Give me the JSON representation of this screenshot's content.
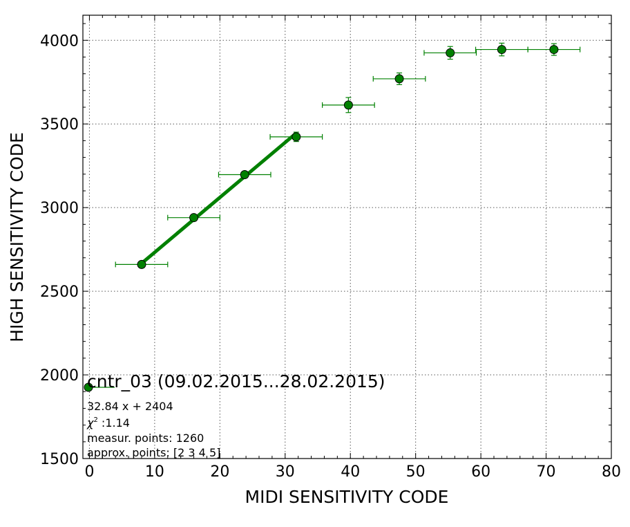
{
  "chart_data": {
    "type": "scatter",
    "xlabel": "MIDI SENSITIVITY CODE",
    "ylabel": "HIGH SENSITIVITY CODE",
    "xlim": [
      -1,
      80
    ],
    "ylim": [
      1500,
      4150
    ],
    "xticks": [
      0,
      10,
      20,
      30,
      40,
      50,
      60,
      70,
      80
    ],
    "yticks": [
      1500,
      2000,
      2500,
      3000,
      3500,
      4000
    ],
    "xtick_labels": [
      "0",
      "10",
      "20",
      "30",
      "40",
      "50",
      "60",
      "70",
      "80"
    ],
    "ytick_labels": [
      "1500",
      "2000",
      "2500",
      "3000",
      "3500",
      "4000"
    ],
    "grid": true,
    "legend_location": "lower-left",
    "series": [
      {
        "name": "cntr_03 (09.02.2015...28.02.2015)",
        "color": "#008000",
        "points": [
          {
            "x": 8.0,
            "y": 2660,
            "xerr": 4,
            "yerr": 10
          },
          {
            "x": 16.0,
            "y": 2940,
            "xerr": 4,
            "yerr": 12
          },
          {
            "x": 23.8,
            "y": 3197,
            "xerr": 4,
            "yerr": 15
          },
          {
            "x": 31.7,
            "y": 3423,
            "xerr": 4,
            "yerr": 28
          },
          {
            "x": 39.7,
            "y": 3613,
            "xerr": 4,
            "yerr": 45
          },
          {
            "x": 47.5,
            "y": 3770,
            "xerr": 4,
            "yerr": 35
          },
          {
            "x": 55.3,
            "y": 3925,
            "xerr": 4,
            "yerr": 38
          },
          {
            "x": 63.2,
            "y": 3945,
            "xerr": 4,
            "yerr": 38
          },
          {
            "x": 71.2,
            "y": 3945,
            "xerr": 4,
            "yerr": 35
          }
        ]
      }
    ],
    "fit": {
      "slope": 32.84,
      "intercept": 2404,
      "x_range": [
        8.0,
        31.7
      ],
      "color": "#008000"
    },
    "legend_text": {
      "title": "cntr_03 (09.02.2015...28.02.2015)",
      "equation": "32.84 x + 2404",
      "chi2_symbol": "χ",
      "chi2_sup": "2",
      "chi2_value": " :1.14",
      "points": "measur. points: 1260",
      "approx": "approx. points: [2 3 4 5]"
    }
  }
}
